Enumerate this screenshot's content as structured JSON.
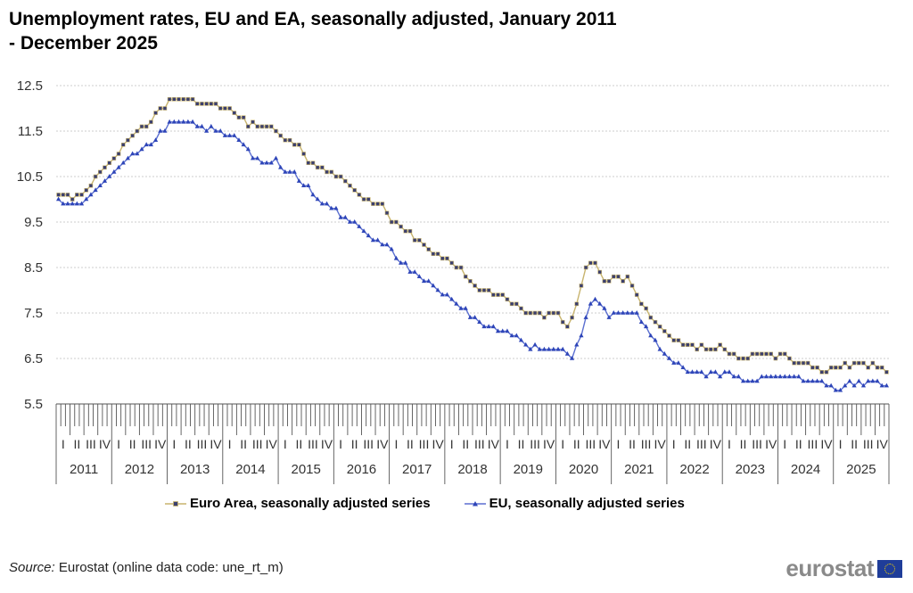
{
  "chart_data": {
    "type": "line",
    "title": "Unemployment rates, EU and EA, seasonally adjusted, January 2011 - December 2025",
    "title_lines": [
      "Unemployment rates, EU and EA, seasonally adjusted, January 2011",
      "- December 2025"
    ],
    "xlabel": "",
    "ylabel": "",
    "ylim": [
      5.5,
      12.5
    ],
    "yticks": [
      "12.5",
      "11.5",
      "10.5",
      "9.5",
      "8.5",
      "7.5",
      "6.5",
      "5.5"
    ],
    "ytick_values": [
      12.5,
      11.5,
      10.5,
      9.5,
      8.5,
      7.5,
      6.5,
      5.5
    ],
    "grid": true,
    "years": [
      "2011",
      "2012",
      "2013",
      "2014",
      "2015",
      "2016",
      "2017",
      "2018",
      "2019",
      "2020",
      "2021",
      "2022",
      "2023",
      "2024",
      "2025"
    ],
    "quarter_labels": [
      "I",
      "II",
      "III",
      "IV"
    ],
    "x_frequency": "monthly",
    "legend_position": "bottom",
    "series": [
      {
        "name": "Euro Area, seasonally adjusted series",
        "color": "#c8b46e",
        "marker_color": "#3b3f6e",
        "marker": "square",
        "values": [
          10.1,
          10.1,
          10.1,
          10.0,
          10.1,
          10.1,
          10.2,
          10.3,
          10.5,
          10.6,
          10.7,
          10.8,
          10.9,
          11.0,
          11.2,
          11.3,
          11.4,
          11.5,
          11.6,
          11.6,
          11.7,
          11.9,
          12.0,
          12.0,
          12.2,
          12.2,
          12.2,
          12.2,
          12.2,
          12.2,
          12.1,
          12.1,
          12.1,
          12.1,
          12.1,
          12.0,
          12.0,
          12.0,
          11.9,
          11.8,
          11.8,
          11.6,
          11.7,
          11.6,
          11.6,
          11.6,
          11.6,
          11.5,
          11.4,
          11.3,
          11.3,
          11.2,
          11.2,
          11.0,
          10.8,
          10.8,
          10.7,
          10.7,
          10.6,
          10.6,
          10.5,
          10.5,
          10.4,
          10.3,
          10.2,
          10.1,
          10.0,
          10.0,
          9.9,
          9.9,
          9.9,
          9.7,
          9.5,
          9.5,
          9.4,
          9.3,
          9.3,
          9.1,
          9.1,
          9.0,
          8.9,
          8.8,
          8.8,
          8.7,
          8.7,
          8.6,
          8.5,
          8.5,
          8.3,
          8.2,
          8.1,
          8.0,
          8.0,
          8.0,
          7.9,
          7.9,
          7.9,
          7.8,
          7.7,
          7.7,
          7.6,
          7.5,
          7.5,
          7.5,
          7.5,
          7.4,
          7.5,
          7.5,
          7.5,
          7.3,
          7.2,
          7.4,
          7.7,
          8.1,
          8.5,
          8.6,
          8.6,
          8.4,
          8.2,
          8.2,
          8.3,
          8.3,
          8.2,
          8.3,
          8.1,
          7.9,
          7.7,
          7.6,
          7.4,
          7.3,
          7.2,
          7.1,
          7.0,
          6.9,
          6.9,
          6.8,
          6.8,
          6.8,
          6.7,
          6.8,
          6.7,
          6.7,
          6.7,
          6.8,
          6.7,
          6.6,
          6.6,
          6.5,
          6.5,
          6.5,
          6.6,
          6.6,
          6.6,
          6.6,
          6.6,
          6.5,
          6.6,
          6.6,
          6.5,
          6.4,
          6.4,
          6.4,
          6.4,
          6.3,
          6.3,
          6.2,
          6.2,
          6.3,
          6.3,
          6.3,
          6.4,
          6.3,
          6.4,
          6.4,
          6.4,
          6.3,
          6.4,
          6.3,
          6.3,
          6.2
        ]
      },
      {
        "name": "EU, seasonally adjusted series",
        "color": "#5b6fd0",
        "marker_color": "#2e45b8",
        "marker": "triangle",
        "values": [
          10.0,
          9.9,
          9.9,
          9.9,
          9.9,
          9.9,
          10.0,
          10.1,
          10.2,
          10.3,
          10.4,
          10.5,
          10.6,
          10.7,
          10.8,
          10.9,
          11.0,
          11.0,
          11.1,
          11.2,
          11.2,
          11.3,
          11.5,
          11.5,
          11.7,
          11.7,
          11.7,
          11.7,
          11.7,
          11.7,
          11.6,
          11.6,
          11.5,
          11.6,
          11.5,
          11.5,
          11.4,
          11.4,
          11.4,
          11.3,
          11.2,
          11.1,
          10.9,
          10.9,
          10.8,
          10.8,
          10.8,
          10.9,
          10.7,
          10.6,
          10.6,
          10.6,
          10.4,
          10.3,
          10.3,
          10.1,
          10.0,
          9.9,
          9.9,
          9.8,
          9.8,
          9.6,
          9.6,
          9.5,
          9.5,
          9.4,
          9.3,
          9.2,
          9.1,
          9.1,
          9.0,
          9.0,
          8.9,
          8.7,
          8.6,
          8.6,
          8.4,
          8.4,
          8.3,
          8.2,
          8.2,
          8.1,
          8.0,
          7.9,
          7.9,
          7.8,
          7.7,
          7.6,
          7.6,
          7.4,
          7.4,
          7.3,
          7.2,
          7.2,
          7.2,
          7.1,
          7.1,
          7.1,
          7.0,
          7.0,
          6.9,
          6.8,
          6.7,
          6.8,
          6.7,
          6.7,
          6.7,
          6.7,
          6.7,
          6.7,
          6.6,
          6.5,
          6.8,
          7.0,
          7.4,
          7.7,
          7.8,
          7.7,
          7.6,
          7.4,
          7.5,
          7.5,
          7.5,
          7.5,
          7.5,
          7.5,
          7.3,
          7.2,
          7.0,
          6.9,
          6.7,
          6.6,
          6.5,
          6.4,
          6.4,
          6.3,
          6.2,
          6.2,
          6.2,
          6.2,
          6.1,
          6.2,
          6.2,
          6.1,
          6.2,
          6.2,
          6.1,
          6.1,
          6.0,
          6.0,
          6.0,
          6.0,
          6.1,
          6.1,
          6.1,
          6.1,
          6.1,
          6.1,
          6.1,
          6.1,
          6.1,
          6.0,
          6.0,
          6.0,
          6.0,
          6.0,
          5.9,
          5.9,
          5.8,
          5.8,
          5.9,
          6.0,
          5.9,
          6.0,
          5.9,
          6.0,
          6.0,
          6.0,
          5.9,
          5.9
        ]
      }
    ]
  },
  "footer": {
    "source_label": "Source:",
    "source_text": " Eurostat (online data code: une_rt_m)",
    "logo_text": "eurostat"
  }
}
